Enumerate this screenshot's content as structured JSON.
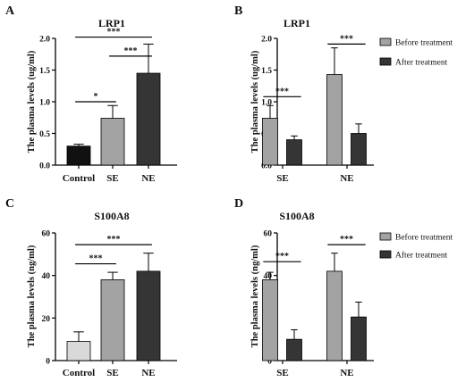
{
  "chart_data": [
    {
      "type": "bar",
      "panel": "A",
      "title": "LRP1",
      "ylabel": "The plasma levels (ug/ml)",
      "xlabel": "",
      "categories": [
        "Control",
        "SE",
        "NE"
      ],
      "values": [
        0.3,
        0.74,
        1.45
      ],
      "errors": [
        0.03,
        0.2,
        0.46
      ],
      "colors": [
        "#111111",
        "#a3a3a3",
        "#353535"
      ],
      "ylim": [
        0,
        2.0
      ],
      "yticks": [
        "0.0",
        "0.5",
        "1.0",
        "1.5",
        "2.0"
      ],
      "significance": [
        {
          "from": 0,
          "to": 1,
          "label": "*",
          "y": 1.0
        },
        {
          "from": 1,
          "to": 2,
          "label": "***",
          "y": 1.72
        },
        {
          "from": 0,
          "to": 2,
          "label": "***",
          "y": 2.02
        }
      ]
    },
    {
      "type": "bar",
      "panel": "B",
      "title": "LRP1",
      "ylabel": "The plasma levels (ug/ml)",
      "xlabel": "",
      "categories": [
        "SE",
        "NE"
      ],
      "series": [
        {
          "name": "Before treatment",
          "values": [
            0.74,
            1.43
          ],
          "errors": [
            0.2,
            0.42
          ],
          "color": "#a3a3a3"
        },
        {
          "name": "After treatment",
          "values": [
            0.4,
            0.5
          ],
          "errors": [
            0.06,
            0.15
          ],
          "color": "#353535"
        }
      ],
      "ylim": [
        0,
        2.0
      ],
      "yticks": [
        "0.0",
        "0.5",
        "1.0",
        "1.5",
        "2.0"
      ],
      "legend": "top-right",
      "significance": [
        {
          "category": 0,
          "label": "***",
          "y": 1.08
        },
        {
          "category": 1,
          "label": "***",
          "y": 1.91
        }
      ]
    },
    {
      "type": "bar",
      "panel": "C",
      "title": "S100A8",
      "ylabel": "The plasma levels (ng/ml)",
      "xlabel": "",
      "categories": [
        "Control",
        "SE",
        "NE"
      ],
      "values": [
        9,
        38,
        42
      ],
      "errors": [
        4.5,
        3.5,
        8.5
      ],
      "colors": [
        "#d9d9d9",
        "#a3a3a3",
        "#353535"
      ],
      "ylim": [
        0,
        60
      ],
      "yticks": [
        "0",
        "20",
        "40",
        "60"
      ],
      "significance": [
        {
          "from": 0,
          "to": 1,
          "label": "***",
          "y": 45.5
        },
        {
          "from": 0,
          "to": 2,
          "label": "***",
          "y": 54.5
        }
      ]
    },
    {
      "type": "bar",
      "panel": "D",
      "title": "S100A8",
      "ylabel": "The plasma levels (ng/ml)",
      "xlabel": "",
      "categories": [
        "SE",
        "NE"
      ],
      "series": [
        {
          "name": "Before treatment",
          "values": [
            38,
            42
          ],
          "errors": [
            3.5,
            8.5
          ],
          "color": "#a3a3a3"
        },
        {
          "name": "After treatment",
          "values": [
            10,
            20.5
          ],
          "errors": [
            4.5,
            7
          ],
          "color": "#353535"
        }
      ],
      "ylim": [
        0,
        60
      ],
      "yticks": [
        "0",
        "20",
        "40",
        "60"
      ],
      "legend": "top-right",
      "significance": [
        {
          "category": 0,
          "label": "***",
          "y": 46.5
        },
        {
          "category": 1,
          "label": "***",
          "y": 54.5
        }
      ]
    }
  ]
}
